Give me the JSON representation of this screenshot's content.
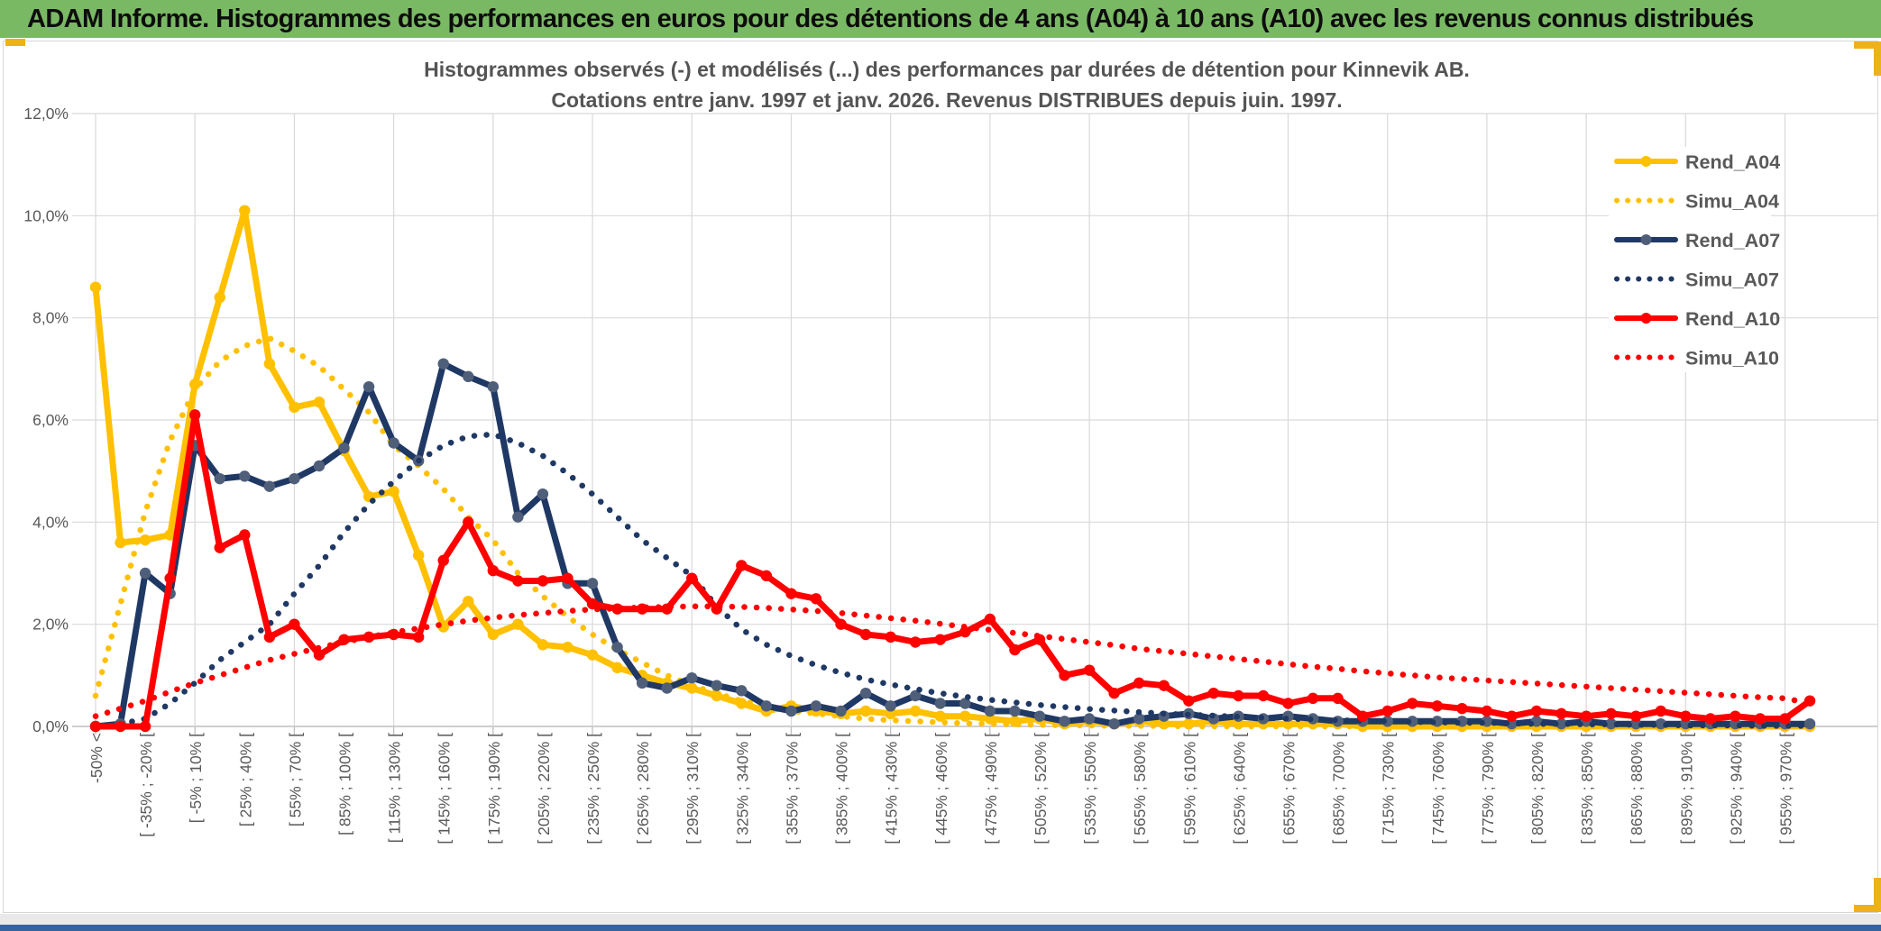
{
  "header": {
    "title": "ADAM Informe. Histogrammes des performances en euros pour des détentions de 4 ans (A04) à 10 ans (A10) avec les revenus connus distribués"
  },
  "chart": {
    "title_line1": "Histogrammes observés (-) et modélisés (...) des performances par durées de détention pour Kinnevik AB.",
    "title_line2": "Cotations entre janv. 1997 et janv. 2026. Revenus DISTRIBUES depuis juin. 1997.",
    "colors": {
      "gold": "#FFC000",
      "navy": "#1F3864",
      "navy_marker": "#4F5F7A",
      "red": "#FE0000",
      "grid": "#D9D9D9",
      "axis": "#BFBFBF",
      "label": "#595959",
      "header_green": "#7ab964",
      "accent_gold": "#eeb118"
    }
  },
  "chart_data": {
    "type": "line",
    "title": "Histogrammes observés (-) et modélisés (...) des performances par durées de détention pour Kinnevik AB.",
    "subtitle": "Cotations entre janv. 1997 et janv. 2026. Revenus DISTRIBUES depuis juin. 1997.",
    "xlabel": "",
    "ylabel": "",
    "ylim": [
      0,
      12
    ],
    "grid": true,
    "legend_position": "right",
    "y_tick_labels": [
      "0,0%",
      "2,0%",
      "4,0%",
      "6,0%",
      "8,0%",
      "10,0%",
      "12,0%"
    ],
    "x_tick_labels": [
      "-50% <",
      "[ -35% ; -20% [",
      "[ -5% ; 10% [",
      "[ 25% ; 40% [",
      "[ 55% ; 70% [",
      "[ 85% ; 100% [",
      "[ 115% ; 130% [",
      "[ 145% ; 160% [",
      "[ 175% ; 190% [",
      "[ 205% ; 220% [",
      "[ 235% ; 250% [",
      "[ 265% ; 280% [",
      "[ 295% ; 310% [",
      "[ 325% ; 340% [",
      "[ 355% ; 370% [",
      "[ 385% ; 400% [",
      "[ 415% ; 430% [",
      "[ 445% ; 460% [",
      "[ 475% ; 490% [",
      "[ 505% ; 520% [",
      "[ 535% ; 550% [",
      "[ 565% ; 580% [",
      "[ 595% ; 610% [",
      "[ 625% ; 640% [",
      "[ 655% ; 670% [",
      "[ 685% ; 700% [",
      "[ 715% ; 730% [",
      "[ 745% ; 760% [",
      "[ 775% ; 790% [",
      "[ 805% ; 820% [",
      "[ 835% ; 850% [",
      "[ 865% ; 880% [",
      "[ 895% ; 910% [",
      "[ 925% ; 940% [",
      "[ 955% ; 970% ["
    ],
    "x_tick_note": "labels shown for every 2nd 15%-wide bin; data points exist for all 70 bins",
    "series": [
      {
        "name": "Rend_A04",
        "style": "solid",
        "color": "#FFC000",
        "marker": true,
        "marker_color": "#FFC000",
        "values": [
          8.6,
          3.6,
          3.65,
          3.75,
          6.7,
          8.4,
          10.1,
          7.1,
          6.25,
          6.35,
          5.4,
          4.5,
          4.6,
          3.35,
          1.95,
          2.45,
          1.8,
          2.0,
          1.6,
          1.55,
          1.4,
          1.15,
          1.0,
          0.85,
          0.75,
          0.6,
          0.45,
          0.3,
          0.4,
          0.3,
          0.25,
          0.3,
          0.25,
          0.3,
          0.2,
          0.2,
          0.15,
          0.1,
          0.15,
          0.05,
          0.1,
          0.05,
          0.1,
          0.05,
          0.05,
          0.1,
          0.05,
          0.05,
          0.05,
          0.05,
          0.05,
          0,
          0,
          0,
          0,
          0,
          0,
          0,
          0,
          0,
          0,
          0,
          0,
          0,
          0,
          0,
          0,
          0,
          0,
          0
        ]
      },
      {
        "name": "Simu_A04",
        "style": "dotted",
        "color": "#FFC000",
        "marker": false,
        "values": [
          0.6,
          2.4,
          4.2,
          5.6,
          6.6,
          7.15,
          7.45,
          7.6,
          7.35,
          7.05,
          6.6,
          6.15,
          5.5,
          5.1,
          4.65,
          4.1,
          3.65,
          3.0,
          2.55,
          2.15,
          1.8,
          1.5,
          1.25,
          1.0,
          0.8,
          0.65,
          0.5,
          0.4,
          0.3,
          0.25,
          0.2,
          0.15,
          0.12,
          0.1,
          0.08,
          0.06,
          0.05,
          0.04,
          0.03,
          0.02,
          0.02,
          0.01,
          0.01,
          0.01,
          0,
          0,
          0,
          0,
          0,
          0,
          0,
          0,
          0,
          0,
          0,
          0,
          0,
          0,
          0,
          0,
          0,
          0,
          0,
          0,
          0,
          0,
          0,
          0,
          0,
          0
        ]
      },
      {
        "name": "Rend_A07",
        "style": "solid",
        "color": "#1F3864",
        "marker": true,
        "marker_color": "#4F5F7A",
        "values": [
          0,
          0.05,
          3.0,
          2.6,
          5.5,
          4.85,
          4.9,
          4.7,
          4.85,
          5.1,
          5.45,
          6.65,
          5.55,
          5.2,
          7.1,
          6.85,
          6.65,
          4.1,
          4.55,
          2.8,
          2.8,
          1.55,
          0.85,
          0.75,
          0.95,
          0.8,
          0.7,
          0.4,
          0.3,
          0.4,
          0.3,
          0.65,
          0.4,
          0.6,
          0.45,
          0.45,
          0.3,
          0.3,
          0.2,
          0.1,
          0.15,
          0.05,
          0.15,
          0.2,
          0.25,
          0.15,
          0.2,
          0.15,
          0.2,
          0.15,
          0.1,
          0.1,
          0.1,
          0.1,
          0.1,
          0.1,
          0.1,
          0.05,
          0.1,
          0.05,
          0.1,
          0.05,
          0.05,
          0.05,
          0.05,
          0.05,
          0.05,
          0.05,
          0.05,
          0.05
        ]
      },
      {
        "name": "Simu_A07",
        "style": "dotted",
        "color": "#1F3864",
        "marker": false,
        "values": [
          0,
          0.05,
          0.15,
          0.45,
          0.85,
          1.3,
          1.65,
          2.0,
          2.6,
          3.15,
          3.8,
          4.35,
          4.8,
          5.2,
          5.5,
          5.68,
          5.72,
          5.55,
          5.3,
          4.95,
          4.55,
          4.1,
          3.65,
          3.3,
          2.95,
          2.35,
          1.9,
          1.6,
          1.38,
          1.2,
          1.05,
          0.92,
          0.82,
          0.73,
          0.65,
          0.58,
          0.52,
          0.47,
          0.42,
          0.38,
          0.34,
          0.31,
          0.28,
          0.25,
          0.23,
          0.21,
          0.19,
          0.17,
          0.15,
          0.14,
          0.12,
          0.11,
          0.1,
          0.09,
          0.08,
          0.07,
          0.07,
          0.06,
          0.05,
          0.05,
          0.04,
          0.04,
          0.03,
          0.03,
          0.02,
          0.02,
          0.02,
          0.01,
          0.01,
          0.01
        ]
      },
      {
        "name": "Rend_A10",
        "style": "solid",
        "color": "#FE0000",
        "marker": true,
        "marker_color": "#FE0000",
        "values": [
          0,
          0,
          0,
          2.9,
          6.1,
          3.5,
          3.75,
          1.75,
          2.0,
          1.4,
          1.7,
          1.75,
          1.8,
          1.75,
          3.25,
          4.0,
          3.05,
          2.85,
          2.85,
          2.9,
          2.4,
          2.3,
          2.3,
          2.3,
          2.9,
          2.3,
          3.15,
          2.95,
          2.6,
          2.5,
          2.0,
          1.8,
          1.75,
          1.65,
          1.7,
          1.85,
          2.1,
          1.5,
          1.7,
          1.0,
          1.1,
          0.65,
          0.85,
          0.8,
          0.5,
          0.65,
          0.6,
          0.6,
          0.45,
          0.55,
          0.55,
          0.2,
          0.3,
          0.45,
          0.4,
          0.35,
          0.3,
          0.2,
          0.3,
          0.25,
          0.2,
          0.25,
          0.2,
          0.3,
          0.2,
          0.15,
          0.2,
          0.15,
          0.15,
          0.5
        ]
      },
      {
        "name": "Simu_A10",
        "style": "dotted",
        "color": "#FE0000",
        "marker": false,
        "values": [
          0.2,
          0.35,
          0.5,
          0.68,
          0.85,
          1.0,
          1.15,
          1.3,
          1.42,
          1.54,
          1.65,
          1.75,
          1.84,
          1.92,
          2.0,
          2.07,
          2.13,
          2.18,
          2.22,
          2.26,
          2.29,
          2.31,
          2.33,
          2.34,
          2.35,
          2.35,
          2.34,
          2.32,
          2.29,
          2.26,
          2.22,
          2.17,
          2.12,
          2.07,
          2.01,
          1.95,
          1.89,
          1.83,
          1.77,
          1.71,
          1.65,
          1.59,
          1.52,
          1.47,
          1.42,
          1.37,
          1.32,
          1.27,
          1.22,
          1.17,
          1.13,
          1.08,
          1.04,
          1.0,
          0.96,
          0.93,
          0.9,
          0.87,
          0.84,
          0.81,
          0.78,
          0.75,
          0.72,
          0.69,
          0.66,
          0.63,
          0.6,
          0.57,
          0.55,
          0.45
        ]
      }
    ],
    "legend_entries": [
      "Rend_A04",
      "Simu_A04",
      "Rend_A07",
      "Simu_A07",
      "Rend_A10",
      "Simu_A10"
    ]
  }
}
